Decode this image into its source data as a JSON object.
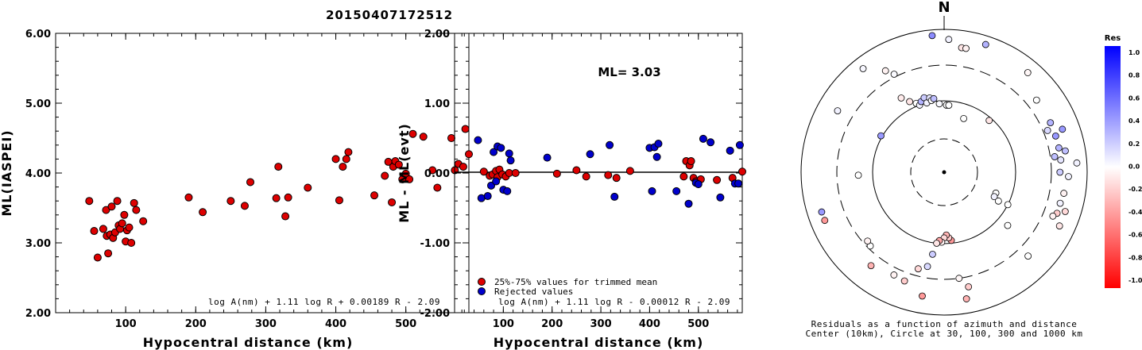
{
  "title": "20150407172512",
  "chart_data": [
    {
      "type": "scatter",
      "xlabel": "Hypocentral distance (km)",
      "ylabel": "ML(IASPEI)",
      "xlim": [
        0,
        590
      ],
      "ylim": [
        2.0,
        6.0
      ],
      "yticks": [
        "2.00",
        "3.00",
        "4.00",
        "5.00",
        "6.00"
      ],
      "xticks": [
        "100",
        "200",
        "300",
        "400",
        "500"
      ],
      "formula": "log A(nm) + 1.11 log R + 0.00189 R - 2.09",
      "marker_color": "#dd0000",
      "points": [
        [
          48,
          3.6
        ],
        [
          55,
          3.17
        ],
        [
          60,
          2.79
        ],
        [
          68,
          3.2
        ],
        [
          72,
          3.47
        ],
        [
          73,
          3.1
        ],
        [
          75,
          2.85
        ],
        [
          78,
          3.12
        ],
        [
          80,
          3.52
        ],
        [
          82,
          3.07
        ],
        [
          85,
          3.15
        ],
        [
          88,
          3.6
        ],
        [
          90,
          3.25
        ],
        [
          92,
          3.2
        ],
        [
          95,
          3.28
        ],
        [
          98,
          3.4
        ],
        [
          100,
          3.02
        ],
        [
          102,
          3.18
        ],
        [
          105,
          3.22
        ],
        [
          108,
          3.0
        ],
        [
          112,
          3.57
        ],
        [
          115,
          3.47
        ],
        [
          125,
          3.31
        ],
        [
          190,
          3.65
        ],
        [
          210,
          3.44
        ],
        [
          250,
          3.6
        ],
        [
          270,
          3.53
        ],
        [
          278,
          3.87
        ],
        [
          315,
          3.64
        ],
        [
          318,
          4.09
        ],
        [
          328,
          3.38
        ],
        [
          332,
          3.65
        ],
        [
          360,
          3.79
        ],
        [
          400,
          4.2
        ],
        [
          405,
          3.61
        ],
        [
          410,
          4.09
        ],
        [
          415,
          4.2
        ],
        [
          418,
          4.3
        ],
        [
          455,
          3.68
        ],
        [
          470,
          3.96
        ],
        [
          475,
          4.16
        ],
        [
          480,
          3.58
        ],
        [
          482,
          4.09
        ],
        [
          485,
          4.17
        ],
        [
          490,
          4.12
        ],
        [
          495,
          3.91
        ],
        [
          500,
          3.99
        ],
        [
          505,
          3.91
        ],
        [
          510,
          4.56
        ],
        [
          525,
          4.52
        ],
        [
          538,
          4.04
        ],
        [
          545,
          3.79
        ],
        [
          565,
          4.5
        ],
        [
          570,
          4.04
        ],
        [
          575,
          4.13
        ],
        [
          582,
          4.09
        ],
        [
          585,
          4.63
        ],
        [
          590,
          4.27
        ]
      ]
    },
    {
      "type": "scatter",
      "xlabel": "Hypocentral distance (km)",
      "ylabel": "ML - ML(evt)",
      "xlim": [
        0,
        590
      ],
      "ylim": [
        -2.0,
        2.0
      ],
      "yticks": [
        "-2.00",
        "-1.00",
        "0.00",
        "1.00",
        "2.00"
      ],
      "xticks": [
        "100",
        "200",
        "300",
        "400",
        "500"
      ],
      "annotation": "ML= 3.03",
      "formula": "log A(nm) + 1.11 log R - 0.00012 R - 2.09",
      "legend": [
        {
          "label": "25%-75% values for trimmed mean",
          "color": "#dd0000"
        },
        {
          "label": "Rejected values",
          "color": "#0000cc"
        }
      ],
      "trimmed": [
        [
          60,
          0.02
        ],
        [
          72,
          -0.04
        ],
        [
          78,
          -0.02
        ],
        [
          85,
          0.03
        ],
        [
          88,
          -0.06
        ],
        [
          92,
          0.05
        ],
        [
          98,
          -0.02
        ],
        [
          105,
          -0.05
        ],
        [
          112,
          0.0
        ],
        [
          125,
          0.0
        ],
        [
          210,
          -0.01
        ],
        [
          250,
          0.04
        ],
        [
          270,
          -0.05
        ],
        [
          315,
          -0.03
        ],
        [
          332,
          -0.07
        ],
        [
          360,
          0.03
        ],
        [
          470,
          -0.05
        ],
        [
          475,
          0.17
        ],
        [
          482,
          0.11
        ],
        [
          485,
          0.17
        ],
        [
          490,
          -0.07
        ],
        [
          495,
          -0.12
        ],
        [
          505,
          -0.09
        ],
        [
          538,
          -0.1
        ],
        [
          570,
          -0.07
        ],
        [
          590,
          0.02
        ]
      ],
      "rejected": [
        [
          48,
          0.47
        ],
        [
          55,
          -0.36
        ],
        [
          68,
          -0.33
        ],
        [
          75,
          -0.18
        ],
        [
          80,
          0.3
        ],
        [
          85,
          -0.12
        ],
        [
          88,
          0.38
        ],
        [
          95,
          0.36
        ],
        [
          100,
          -0.24
        ],
        [
          108,
          -0.26
        ],
        [
          112,
          0.28
        ],
        [
          115,
          0.18
        ],
        [
          190,
          0.22
        ],
        [
          278,
          0.27
        ],
        [
          318,
          0.4
        ],
        [
          328,
          -0.34
        ],
        [
          400,
          0.36
        ],
        [
          405,
          -0.26
        ],
        [
          410,
          0.37
        ],
        [
          415,
          0.23
        ],
        [
          418,
          0.42
        ],
        [
          455,
          -0.26
        ],
        [
          480,
          -0.44
        ],
        [
          495,
          -0.14
        ],
        [
          500,
          -0.16
        ],
        [
          510,
          0.49
        ],
        [
          525,
          0.44
        ],
        [
          545,
          -0.35
        ],
        [
          565,
          0.32
        ],
        [
          575,
          -0.15
        ],
        [
          585,
          0.4
        ],
        [
          582,
          -0.15
        ]
      ]
    },
    {
      "type": "scatter",
      "subtype": "polar",
      "north_label": "N",
      "caption_line1": "Residuals as a function of azimuth and distance",
      "caption_line2": "Center (10km), Circle at 30, 100, 300 and 1000 km",
      "colorbar_title": "Res",
      "colorbar_ticks": [
        "1.0",
        "0.8",
        "0.6",
        "0.4",
        "0.2",
        "0.0",
        "-0.2",
        "-0.4",
        "-0.6",
        "-0.8",
        "-1.0"
      ],
      "points": [
        {
          "az": 355,
          "r": 0.96,
          "res": 0.45
        },
        {
          "az": 2,
          "r": 0.93,
          "res": 0.05
        },
        {
          "az": 8,
          "r": 0.88,
          "res": -0.1
        },
        {
          "az": 10,
          "r": 0.88,
          "res": -0.05
        },
        {
          "az": 18,
          "r": 0.94,
          "res": 0.3
        },
        {
          "az": 330,
          "r": 0.82,
          "res": -0.05
        },
        {
          "az": 333,
          "r": 0.77,
          "res": 0.02
        },
        {
          "az": 322,
          "r": 0.92,
          "res": 0.03
        },
        {
          "az": 300,
          "r": 0.86,
          "res": 0.05
        },
        {
          "az": 334,
          "r": 0.55,
          "res": -0.1
        },
        {
          "az": 338,
          "r": 0.52,
          "res": 0.0
        },
        {
          "az": 340,
          "r": 0.5,
          "res": 0.05
        },
        {
          "az": 342,
          "r": 0.52,
          "res": 0.3
        },
        {
          "az": 345,
          "r": 0.54,
          "res": 0.2
        },
        {
          "az": 346,
          "r": 0.5,
          "res": 0.05
        },
        {
          "az": 349,
          "r": 0.53,
          "res": 0.1
        },
        {
          "az": 350,
          "r": 0.51,
          "res": 0.0
        },
        {
          "az": 352,
          "r": 0.52,
          "res": 0.25
        },
        {
          "az": 356,
          "r": 0.48,
          "res": 0.02
        },
        {
          "az": 2,
          "r": 0.47,
          "res": 0.0
        },
        {
          "az": 4,
          "r": 0.47,
          "res": 0.0
        },
        {
          "az": 330,
          "r": 0.6,
          "res": -0.08
        },
        {
          "az": 20,
          "r": 0.4,
          "res": 0.0
        },
        {
          "az": 41,
          "r": 0.48,
          "res": -0.1
        },
        {
          "az": 40,
          "r": 0.91,
          "res": -0.03
        },
        {
          "az": 52,
          "r": 0.82,
          "res": 0.0
        },
        {
          "az": 68,
          "r": 0.78,
          "res": 0.15
        },
        {
          "az": 65,
          "r": 0.82,
          "res": 0.3
        },
        {
          "az": 70,
          "r": 0.88,
          "res": 0.4
        },
        {
          "az": 72,
          "r": 0.82,
          "res": 0.4
        },
        {
          "az": 78,
          "r": 0.82,
          "res": 0.3
        },
        {
          "az": 80,
          "r": 0.86,
          "res": 0.25
        },
        {
          "az": 82,
          "r": 0.78,
          "res": 0.25
        },
        {
          "az": 84,
          "r": 0.82,
          "res": 0.1
        },
        {
          "az": 86,
          "r": 0.93,
          "res": 0.05
        },
        {
          "az": 90,
          "r": 0.81,
          "res": 0.2
        },
        {
          "az": 92,
          "r": 0.87,
          "res": 0.05
        },
        {
          "az": 100,
          "r": 0.85,
          "res": -0.05
        },
        {
          "az": 105,
          "r": 0.84,
          "res": 0.05
        },
        {
          "az": 108,
          "r": 0.89,
          "res": -0.15
        },
        {
          "az": 110,
          "r": 0.84,
          "res": -0.2
        },
        {
          "az": 112,
          "r": 0.82,
          "res": -0.05
        },
        {
          "az": 115,
          "r": 0.89,
          "res": -0.1
        },
        {
          "az": 112,
          "r": 0.39,
          "res": 0.0
        },
        {
          "az": 116,
          "r": 0.39,
          "res": 0.05
        },
        {
          "az": 118,
          "r": 0.43,
          "res": 0.0
        },
        {
          "az": 117,
          "r": 0.5,
          "res": 0.0
        },
        {
          "az": 130,
          "r": 0.58,
          "res": 0.0
        },
        {
          "az": 135,
          "r": 0.83,
          "res": 0.0
        },
        {
          "az": 172,
          "r": 0.75,
          "res": -0.03
        },
        {
          "az": 170,
          "r": 0.9,
          "res": -0.3
        },
        {
          "az": 168,
          "r": 0.82,
          "res": -0.2
        },
        {
          "az": 174,
          "r": 0.48,
          "res": -0.4
        },
        {
          "az": 176,
          "r": 0.46,
          "res": -0.2
        },
        {
          "az": 178,
          "r": 0.44,
          "res": -0.3
        },
        {
          "az": 180,
          "r": 0.46,
          "res": -0.15
        },
        {
          "az": 182,
          "r": 0.49,
          "res": -0.05
        },
        {
          "az": 184,
          "r": 0.48,
          "res": -0.35
        },
        {
          "az": 186,
          "r": 0.5,
          "res": -0.1
        },
        {
          "az": 188,
          "r": 0.58,
          "res": 0.2
        },
        {
          "az": 190,
          "r": 0.67,
          "res": 0.15
        },
        {
          "az": 190,
          "r": 0.88,
          "res": -0.4
        },
        {
          "az": 195,
          "r": 0.7,
          "res": -0.15
        },
        {
          "az": 200,
          "r": 0.81,
          "res": -0.2
        },
        {
          "az": 206,
          "r": 0.8,
          "res": -0.05
        },
        {
          "az": 225,
          "r": 0.73,
          "res": 0.0
        },
        {
          "az": 228,
          "r": 0.72,
          "res": -0.05
        },
        {
          "az": 218,
          "r": 0.83,
          "res": -0.3
        },
        {
          "az": 248,
          "r": 0.9,
          "res": -0.4
        },
        {
          "az": 252,
          "r": 0.9,
          "res": 0.4
        },
        {
          "az": 268,
          "r": 0.6,
          "res": 0.0
        },
        {
          "az": 300,
          "r": 0.51,
          "res": 0.4
        }
      ]
    }
  ]
}
